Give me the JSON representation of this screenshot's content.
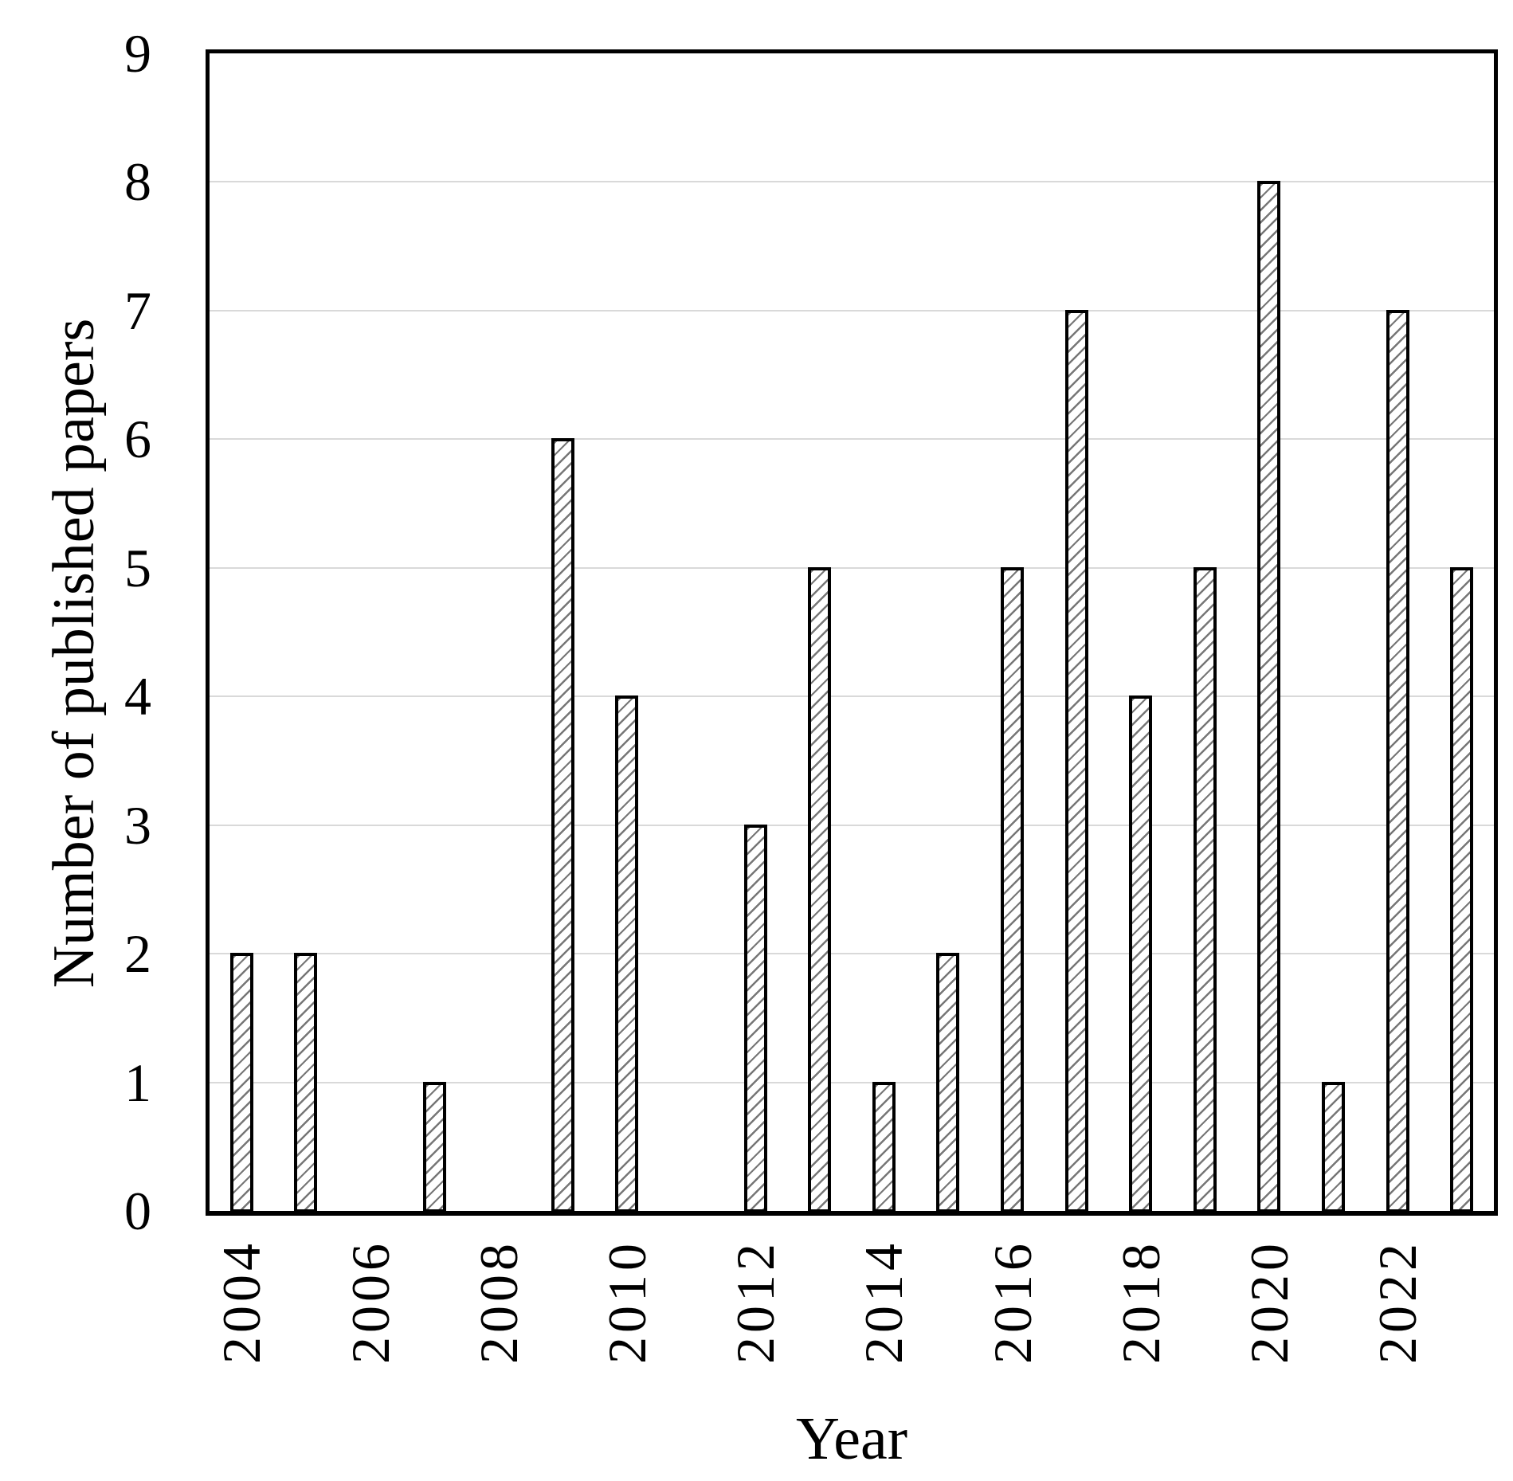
{
  "chart_data": {
    "type": "bar",
    "title": "",
    "xlabel": "Year",
    "ylabel": "Number of published papers",
    "categories": [
      "2004",
      "2005",
      "2006",
      "2007",
      "2008",
      "2009",
      "2010",
      "2011",
      "2012",
      "2013",
      "2014",
      "2015",
      "2016",
      "2017",
      "2018",
      "2019",
      "2020",
      "2021",
      "2022",
      "2023"
    ],
    "values": [
      2,
      2,
      0,
      1,
      0,
      6,
      4,
      0,
      3,
      5,
      1,
      2,
      5,
      7,
      4,
      5,
      8,
      1,
      7,
      5
    ],
    "ylim": [
      0,
      9
    ],
    "yticks": [
      0,
      1,
      2,
      3,
      4,
      5,
      6,
      7,
      8,
      9
    ],
    "xtick_labels": [
      "2004",
      "2006",
      "2008",
      "2010",
      "2012",
      "2014",
      "2016",
      "2018",
      "2020",
      "2022"
    ],
    "grid": "horizontal",
    "legend": "none",
    "style": {
      "bar_fill": "#ffffff",
      "bar_hatch": "diagonal-forward-slash",
      "bar_hatch_color": "#5f5f5f",
      "bar_outline_color": "#000000",
      "gridline_color": "#d9d9d9",
      "axis_color": "#000000",
      "text_color": "#000000"
    }
  }
}
